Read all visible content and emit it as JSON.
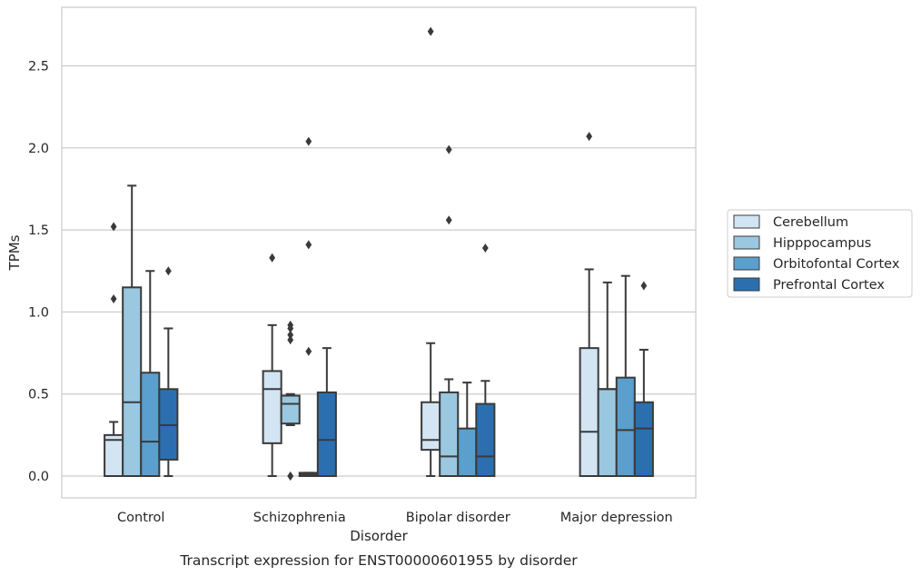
{
  "chart_data": {
    "type": "box",
    "caption": "Transcript expression for ENST00000601955 by disorder",
    "xlabel": "Disorder",
    "ylabel": "TPMs",
    "ylim": [
      -0.13,
      2.85
    ],
    "yticks": [
      0.0,
      0.5,
      1.0,
      1.5,
      2.0,
      2.5
    ],
    "grid": "horizontal",
    "legend_position": "right",
    "categories": [
      "Control",
      "Schizophrenia",
      "Bipolar disorder",
      "Major depression"
    ],
    "series": [
      {
        "name": "Cerebellum",
        "color": "#d3e4f3",
        "boxes": [
          {
            "whislo": 0.0,
            "q1": 0.0,
            "med": 0.22,
            "q3": 0.25,
            "whishi": 0.33,
            "fliers": [
              1.08,
              1.52
            ]
          },
          {
            "whislo": 0.0,
            "q1": 0.2,
            "med": 0.53,
            "q3": 0.64,
            "whishi": 0.92,
            "fliers": [
              1.33
            ]
          },
          {
            "whislo": 0.0,
            "q1": 0.16,
            "med": 0.22,
            "q3": 0.45,
            "whishi": 0.81,
            "fliers": [
              2.71
            ]
          },
          {
            "whislo": 0.0,
            "q1": 0.0,
            "med": 0.27,
            "q3": 0.78,
            "whishi": 1.26,
            "fliers": [
              2.07
            ]
          }
        ]
      },
      {
        "name": "Hipppocampus",
        "color": "#9ac8e0",
        "boxes": [
          {
            "whislo": 0.0,
            "q1": 0.0,
            "med": 0.45,
            "q3": 1.15,
            "whishi": 1.77,
            "fliers": []
          },
          {
            "whislo": 0.31,
            "q1": 0.32,
            "med": 0.44,
            "q3": 0.49,
            "whishi": 0.5,
            "fliers": [
              0.0,
              0.0,
              0.83,
              0.86,
              0.9,
              0.92
            ]
          },
          {
            "whislo": 0.0,
            "q1": 0.0,
            "med": 0.12,
            "q3": 0.51,
            "whishi": 0.59,
            "fliers": [
              1.56,
              1.99
            ]
          },
          {
            "whislo": 0.0,
            "q1": 0.0,
            "med": 0.53,
            "q3": 0.53,
            "whishi": 1.18,
            "fliers": []
          }
        ]
      },
      {
        "name": "Orbitofontal Cortex",
        "color": "#5a9fcd",
        "boxes": [
          {
            "whislo": 0.0,
            "q1": 0.0,
            "med": 0.21,
            "q3": 0.63,
            "whishi": 1.25,
            "fliers": []
          },
          {
            "whislo": 0.0,
            "q1": 0.0,
            "med": 0.01,
            "q3": 0.02,
            "whishi": 0.02,
            "fliers": [
              0.76,
              1.41,
              2.04
            ]
          },
          {
            "whislo": 0.0,
            "q1": 0.0,
            "med": 0.0,
            "q3": 0.29,
            "whishi": 0.57,
            "fliers": []
          },
          {
            "whislo": 0.0,
            "q1": 0.0,
            "med": 0.28,
            "q3": 0.6,
            "whishi": 1.22,
            "fliers": []
          }
        ]
      },
      {
        "name": "Prefrontal Cortex",
        "color": "#2b6fb0",
        "boxes": [
          {
            "whislo": 0.0,
            "q1": 0.1,
            "med": 0.31,
            "q3": 0.53,
            "whishi": 0.9,
            "fliers": [
              1.25
            ]
          },
          {
            "whislo": 0.0,
            "q1": 0.0,
            "med": 0.22,
            "q3": 0.51,
            "whishi": 0.78,
            "fliers": []
          },
          {
            "whislo": 0.0,
            "q1": 0.0,
            "med": 0.12,
            "q3": 0.44,
            "whishi": 0.58,
            "fliers": [
              1.39
            ]
          },
          {
            "whislo": 0.0,
            "q1": 0.0,
            "med": 0.29,
            "q3": 0.45,
            "whishi": 0.77,
            "fliers": [
              1.16
            ]
          }
        ]
      }
    ]
  }
}
